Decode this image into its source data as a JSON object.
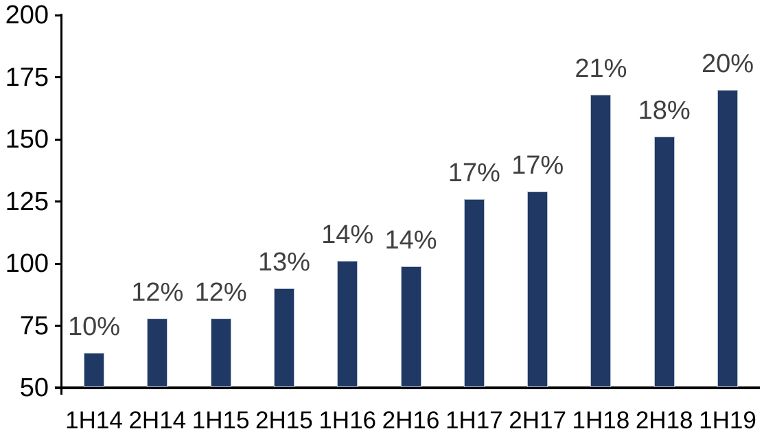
{
  "chart_data": {
    "type": "bar",
    "categories": [
      "1H14",
      "2H14",
      "1H15",
      "2H15",
      "1H16",
      "2H16",
      "1H17",
      "2H17",
      "1H18",
      "2H18",
      "1H19"
    ],
    "values": [
      64,
      78,
      78,
      90,
      101,
      99,
      126,
      129,
      168,
      151,
      170
    ],
    "bar_labels": [
      "10%",
      "12%",
      "12%",
      "13%",
      "14%",
      "14%",
      "17%",
      "17%",
      "21%",
      "18%",
      "20%"
    ],
    "title": "",
    "xlabel": "",
    "ylabel": "",
    "ylim": [
      50,
      200
    ],
    "yticks": [
      50,
      75,
      100,
      125,
      150,
      175,
      200
    ],
    "grid": false,
    "legend": false,
    "colors": {
      "bar_fill": "#1F3864",
      "bar_border": "#b9c3d4",
      "axis": "#000000",
      "axis_tick_label": "#000000",
      "data_label": "#404040",
      "background": "#FFFFFF"
    }
  }
}
